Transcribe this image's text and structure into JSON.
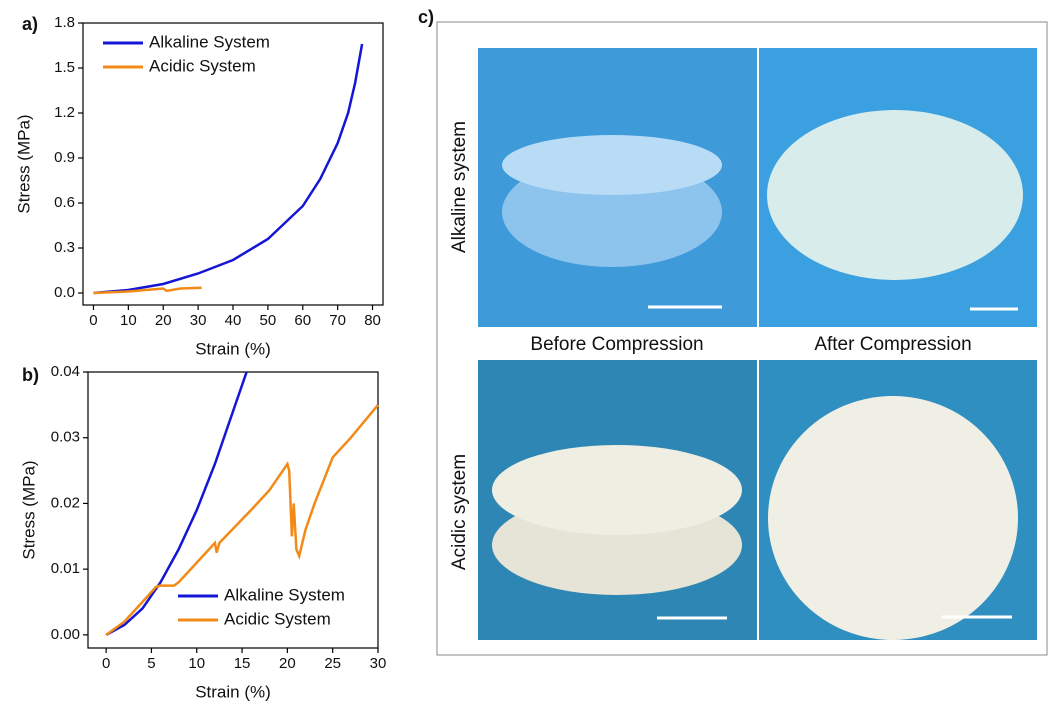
{
  "chart_data": [
    {
      "type": "line",
      "label": "a)",
      "xlabel": "Strain (%)",
      "ylabel": "Stress (MPa)",
      "xlim": [
        -3,
        83
      ],
      "xticks": [
        0,
        10,
        20,
        30,
        40,
        50,
        60,
        70,
        80
      ],
      "ylim": [
        -0.08,
        1.8
      ],
      "yticks": [
        {
          "value": 0,
          "label": "0.0"
        },
        0.3,
        0.6,
        0.9,
        1.2,
        1.5,
        1.8
      ],
      "legend": "upper-left",
      "series": [
        {
          "name": "Alkaline System",
          "color": "#1515d6",
          "x": [
            0,
            10,
            20,
            30,
            40,
            50,
            60,
            65,
            70,
            73,
            75,
            77
          ],
          "values": [
            0,
            0.02,
            0.06,
            0.13,
            0.22,
            0.36,
            0.58,
            0.76,
            1.0,
            1.2,
            1.4,
            1.66
          ]
        },
        {
          "name": "Acidic System",
          "color": "#f28a18",
          "x": [
            0,
            10,
            20,
            21,
            25,
            31
          ],
          "values": [
            0,
            0.01,
            0.03,
            0.015,
            0.03,
            0.035
          ]
        }
      ]
    },
    {
      "type": "line",
      "label": "b)",
      "xlabel": "Strain (%)",
      "ylabel": "Stress (MPa)",
      "xlim": [
        -2,
        30
      ],
      "xticks": [
        0,
        5,
        10,
        15,
        20,
        25,
        30
      ],
      "ylim": [
        -0.002,
        0.04
      ],
      "yticks": [
        {
          "value": 0,
          "label": "0.00"
        },
        {
          "value": 0.01,
          "label": "0.01"
        },
        {
          "value": 0.02,
          "label": "0.02"
        },
        {
          "value": 0.03,
          "label": "0.03"
        },
        {
          "value": 0.04,
          "label": "0.04"
        }
      ],
      "legend": "lower-right",
      "series": [
        {
          "name": "Alkaline System",
          "color": "#1515d6",
          "x": [
            0,
            2,
            4,
            6,
            8,
            10,
            12,
            14,
            15.5
          ],
          "values": [
            0,
            0.0015,
            0.004,
            0.008,
            0.013,
            0.019,
            0.026,
            0.034,
            0.04
          ]
        },
        {
          "name": "Acidic System",
          "color": "#f28a18",
          "x": [
            0,
            2,
            4,
            5.5,
            6,
            7.5,
            8,
            10,
            12,
            12.2,
            12.5,
            16,
            18,
            20,
            20.2,
            20.5,
            20.7,
            21,
            21.3,
            22,
            23,
            25,
            27,
            30
          ],
          "values": [
            0,
            0.002,
            0.005,
            0.0073,
            0.0075,
            0.0075,
            0.008,
            0.011,
            0.014,
            0.0125,
            0.014,
            0.019,
            0.022,
            0.026,
            0.025,
            0.015,
            0.02,
            0.013,
            0.012,
            0.016,
            0.02,
            0.027,
            0.03,
            0.035
          ]
        }
      ]
    }
  ],
  "panel_c": {
    "label": "c)",
    "columns": [
      "Before Compression",
      "After Compression"
    ],
    "rows": [
      "Alkaline system",
      "Acidic system"
    ]
  }
}
